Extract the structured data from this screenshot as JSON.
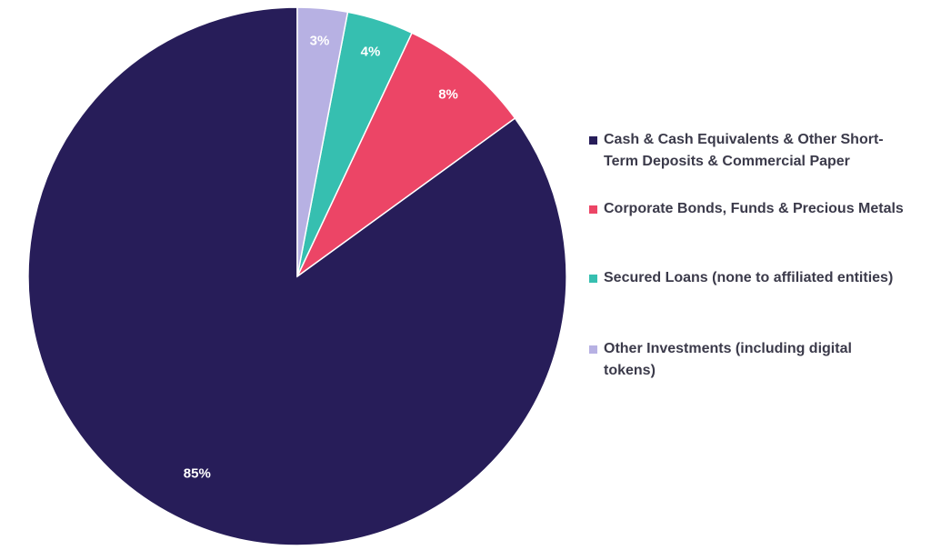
{
  "chart_data": {
    "type": "pie",
    "title": "",
    "start_angle_deg": 0,
    "direction": "counterclockwise",
    "legend_position": "right",
    "slices": [
      {
        "label": "Cash & Cash Equivalents & Other Short-Term Deposits & Commercial Paper",
        "value": 85,
        "display": "85%",
        "color": "#271d59"
      },
      {
        "label": "Corporate Bonds, Funds & Precious Metals",
        "value": 8,
        "display": "8%",
        "color": "#ec4566"
      },
      {
        "label": "Secured Loans (none to affiliated entities)",
        "value": 4,
        "display": "4%",
        "color": "#36bfb0"
      },
      {
        "label": "Other Investments (including digital tokens)",
        "value": 3,
        "display": "3%",
        "color": "#b7b1e3"
      }
    ]
  },
  "legend": {
    "items": [
      {
        "line1": "Cash & Cash Equivalents & Other Short-",
        "line2": "Term Deposits & Commercial Paper",
        "color": "#271d59"
      },
      {
        "line1": "Corporate Bonds, Funds & Precious Metals",
        "line2": "",
        "color": "#ec4566"
      },
      {
        "line1": "Secured Loans (none to affiliated entities)",
        "line2": "",
        "color": "#36bfb0"
      },
      {
        "line1": "Other Investments (including digital",
        "line2": "tokens)",
        "color": "#b7b1e3"
      }
    ]
  }
}
